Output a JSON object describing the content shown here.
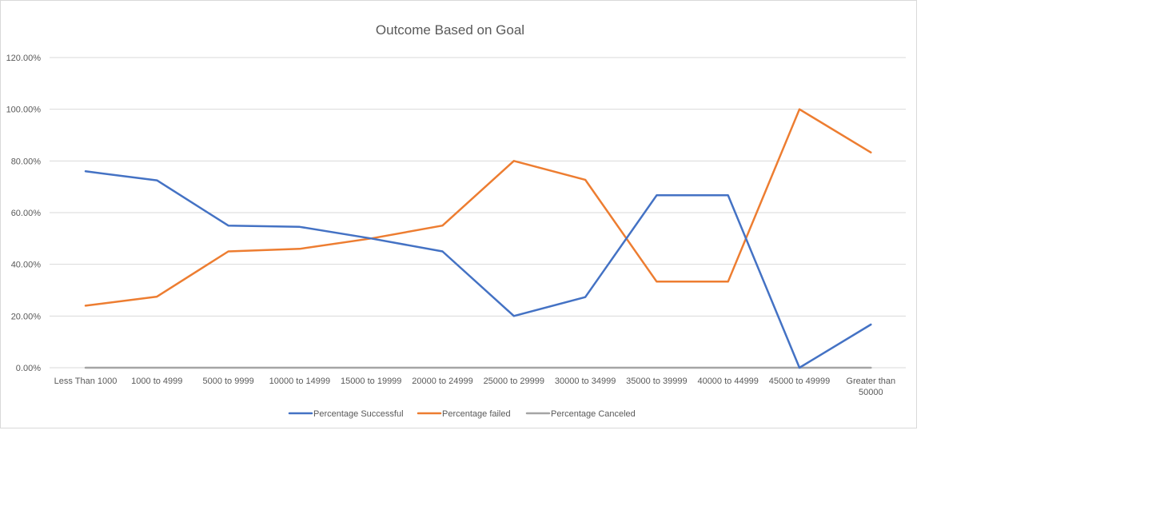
{
  "chart_data": {
    "type": "line",
    "title": "Outcome Based on Goal",
    "xlabel": "",
    "ylabel": "",
    "categories": [
      "Less Than 1000",
      "1000 to 4999",
      "5000 to 9999",
      "10000 to 14999",
      "15000 to 19999",
      "20000 to 24999",
      "25000 to 29999",
      "30000 to 34999",
      "35000 to 39999",
      "40000 to 44999",
      "45000 to 49999",
      "Greater than 50000"
    ],
    "y_ticks": [
      "0.00%",
      "20.00%",
      "40.00%",
      "60.00%",
      "80.00%",
      "100.00%",
      "120.00%"
    ],
    "ylim": [
      0,
      1.2
    ],
    "grid": true,
    "legend_position": "bottom",
    "series": [
      {
        "name": "Percentage Successful",
        "color": "#4472C4",
        "values": [
          0.76,
          0.725,
          0.55,
          0.545,
          0.5,
          0.45,
          0.2,
          0.273,
          0.667,
          0.667,
          0.0,
          0.167
        ]
      },
      {
        "name": "Percentage failed",
        "color": "#ED7D31",
        "values": [
          0.24,
          0.275,
          0.45,
          0.46,
          0.5,
          0.55,
          0.8,
          0.727,
          0.333,
          0.333,
          1.0,
          0.833
        ]
      },
      {
        "name": "Percentage Canceled",
        "color": "#A5A5A5",
        "values": [
          0,
          0,
          0,
          0,
          0,
          0,
          0,
          0,
          0,
          0,
          0,
          0
        ]
      }
    ]
  }
}
